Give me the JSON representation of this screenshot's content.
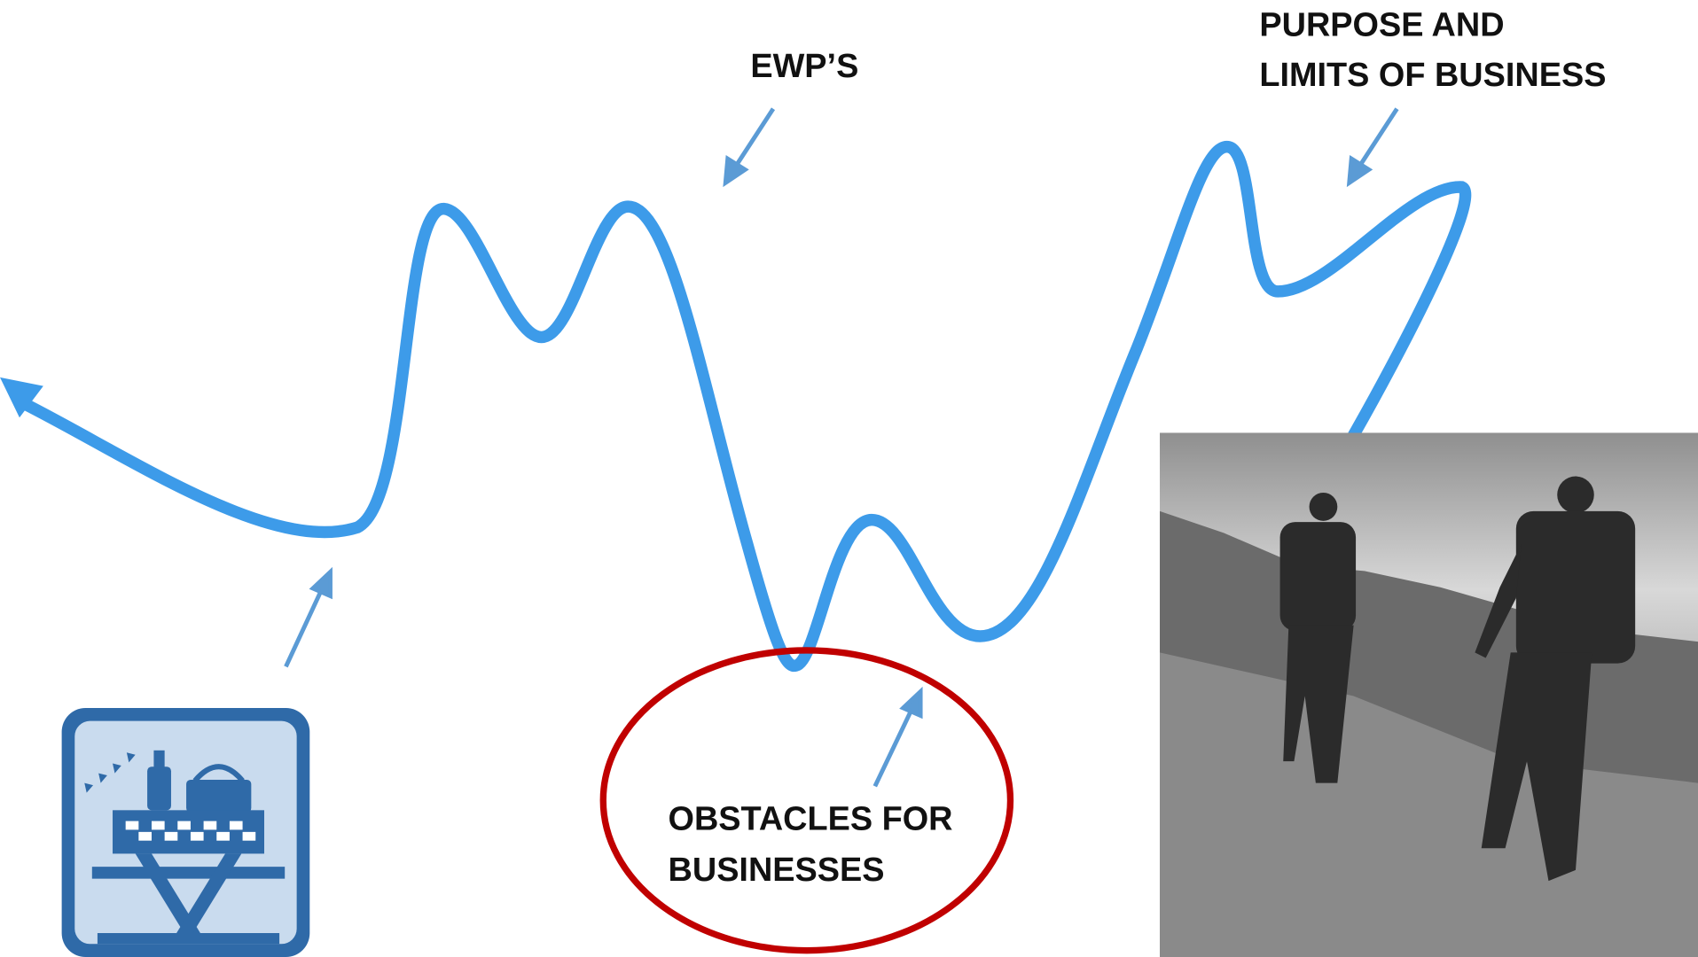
{
  "labels": {
    "ewp": "EWP’S",
    "purpose": [
      "PURPOSE AND",
      "LIMITS OF BUSINESS"
    ],
    "obstacles": [
      "OBSTACLES FOR",
      "BUSINESSES"
    ]
  }
}
